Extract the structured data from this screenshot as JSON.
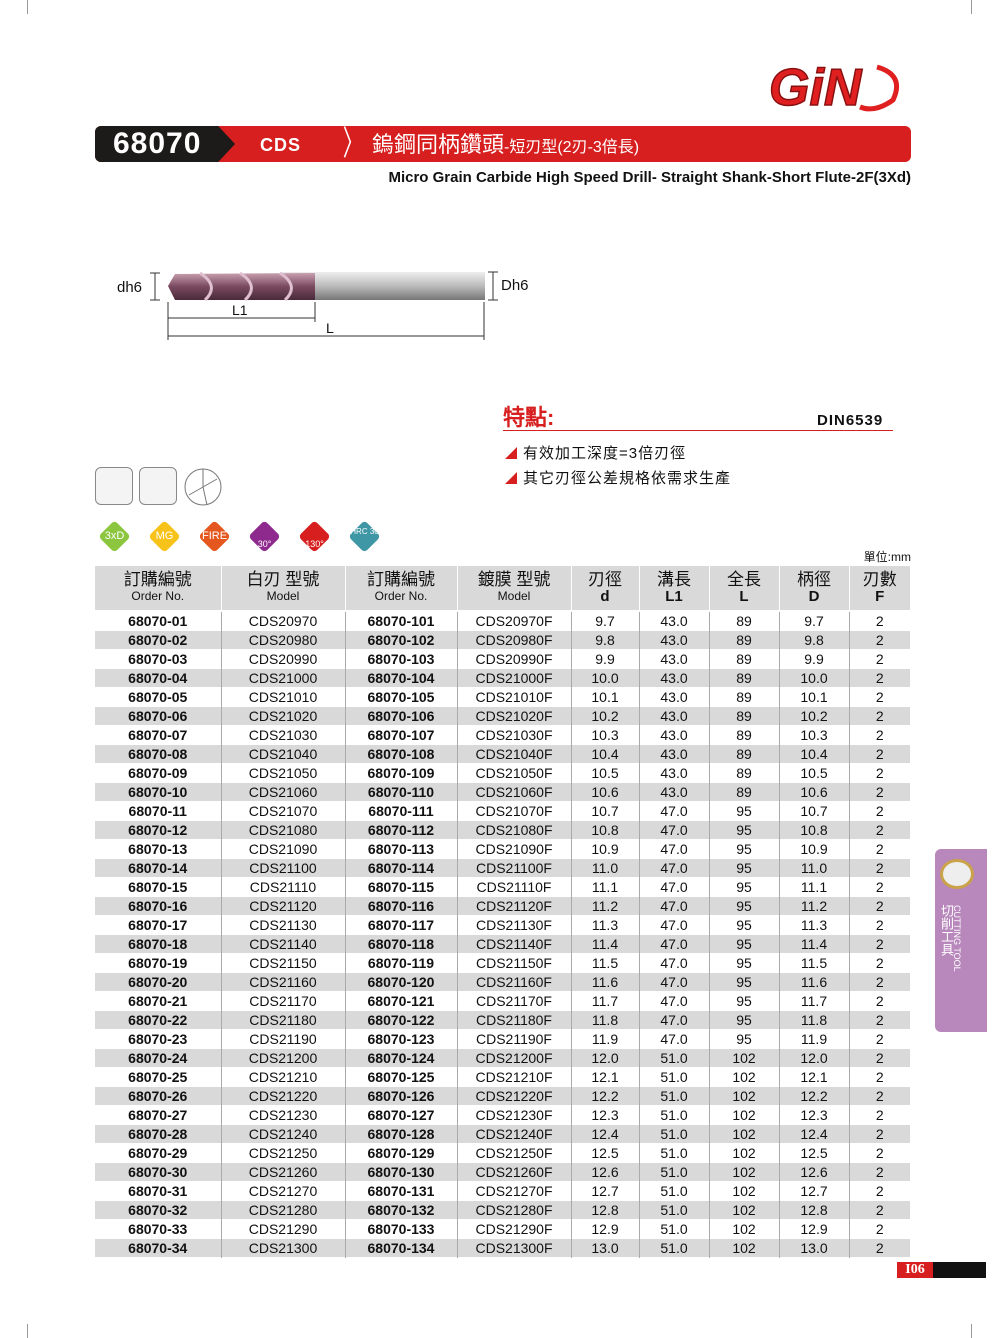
{
  "brand": {
    "logo_text": "GiN"
  },
  "header": {
    "code": "68070",
    "series": "CDS",
    "title_zh": "鎢鋼同柄鑽頭",
    "title_zh_sub": "-短刃型(2刃-3倍長)",
    "title_en": "Micro Grain Carbide High Speed Drill- Straight Shank-Short Flute-2F(3Xd)"
  },
  "diagram": {
    "dh6": "dh6",
    "Dh6": "Dh6",
    "L1": "L1",
    "L": "L"
  },
  "features": {
    "title": "特點:",
    "standard": "DIN6539",
    "items": [
      "有效加工深度=3倍刃徑",
      "其它刃徑公差規格依需求生產"
    ]
  },
  "badges": [
    {
      "label": "3xD",
      "color": "#8cc63f"
    },
    {
      "label": "MG",
      "color": "#f7c21a"
    },
    {
      "label": "FIRE",
      "color": "#e4571e"
    },
    {
      "label": "30°",
      "color": "#8e2a8e"
    },
    {
      "label": "130°",
      "color": "#d71f1f"
    },
    {
      "label": "HRC 30",
      "color": "#3f96a4"
    }
  ],
  "unit": "單位:mm",
  "table": {
    "headers": [
      {
        "zh": "訂購編號",
        "en": "Order No."
      },
      {
        "zh": "白刃 型號",
        "en": "Model"
      },
      {
        "zh": "訂購編號",
        "en": "Order No."
      },
      {
        "zh": "鍍膜 型號",
        "en": "Model"
      },
      {
        "zh": "刃徑",
        "en": "d"
      },
      {
        "zh": "溝長",
        "en": "L1"
      },
      {
        "zh": "全長",
        "en": "L"
      },
      {
        "zh": "柄徑",
        "en": "D"
      },
      {
        "zh": "刃數",
        "en": "F"
      }
    ],
    "rows": [
      [
        "68070-01",
        "CDS20970",
        "68070-101",
        "CDS20970F",
        "9.7",
        "43.0",
        "89",
        "9.7",
        "2"
      ],
      [
        "68070-02",
        "CDS20980",
        "68070-102",
        "CDS20980F",
        "9.8",
        "43.0",
        "89",
        "9.8",
        "2"
      ],
      [
        "68070-03",
        "CDS20990",
        "68070-103",
        "CDS20990F",
        "9.9",
        "43.0",
        "89",
        "9.9",
        "2"
      ],
      [
        "68070-04",
        "CDS21000",
        "68070-104",
        "CDS21000F",
        "10.0",
        "43.0",
        "89",
        "10.0",
        "2"
      ],
      [
        "68070-05",
        "CDS21010",
        "68070-105",
        "CDS21010F",
        "10.1",
        "43.0",
        "89",
        "10.1",
        "2"
      ],
      [
        "68070-06",
        "CDS21020",
        "68070-106",
        "CDS21020F",
        "10.2",
        "43.0",
        "89",
        "10.2",
        "2"
      ],
      [
        "68070-07",
        "CDS21030",
        "68070-107",
        "CDS21030F",
        "10.3",
        "43.0",
        "89",
        "10.3",
        "2"
      ],
      [
        "68070-08",
        "CDS21040",
        "68070-108",
        "CDS21040F",
        "10.4",
        "43.0",
        "89",
        "10.4",
        "2"
      ],
      [
        "68070-09",
        "CDS21050",
        "68070-109",
        "CDS21050F",
        "10.5",
        "43.0",
        "89",
        "10.5",
        "2"
      ],
      [
        "68070-10",
        "CDS21060",
        "68070-110",
        "CDS21060F",
        "10.6",
        "43.0",
        "89",
        "10.6",
        "2"
      ],
      [
        "68070-11",
        "CDS21070",
        "68070-111",
        "CDS21070F",
        "10.7",
        "47.0",
        "95",
        "10.7",
        "2"
      ],
      [
        "68070-12",
        "CDS21080",
        "68070-112",
        "CDS21080F",
        "10.8",
        "47.0",
        "95",
        "10.8",
        "2"
      ],
      [
        "68070-13",
        "CDS21090",
        "68070-113",
        "CDS21090F",
        "10.9",
        "47.0",
        "95",
        "10.9",
        "2"
      ],
      [
        "68070-14",
        "CDS21100",
        "68070-114",
        "CDS21100F",
        "11.0",
        "47.0",
        "95",
        "11.0",
        "2"
      ],
      [
        "68070-15",
        "CDS21110",
        "68070-115",
        "CDS21110F",
        "11.1",
        "47.0",
        "95",
        "11.1",
        "2"
      ],
      [
        "68070-16",
        "CDS21120",
        "68070-116",
        "CDS21120F",
        "11.2",
        "47.0",
        "95",
        "11.2",
        "2"
      ],
      [
        "68070-17",
        "CDS21130",
        "68070-117",
        "CDS21130F",
        "11.3",
        "47.0",
        "95",
        "11.3",
        "2"
      ],
      [
        "68070-18",
        "CDS21140",
        "68070-118",
        "CDS21140F",
        "11.4",
        "47.0",
        "95",
        "11.4",
        "2"
      ],
      [
        "68070-19",
        "CDS21150",
        "68070-119",
        "CDS21150F",
        "11.5",
        "47.0",
        "95",
        "11.5",
        "2"
      ],
      [
        "68070-20",
        "CDS21160",
        "68070-120",
        "CDS21160F",
        "11.6",
        "47.0",
        "95",
        "11.6",
        "2"
      ],
      [
        "68070-21",
        "CDS21170",
        "68070-121",
        "CDS21170F",
        "11.7",
        "47.0",
        "95",
        "11.7",
        "2"
      ],
      [
        "68070-22",
        "CDS21180",
        "68070-122",
        "CDS21180F",
        "11.8",
        "47.0",
        "95",
        "11.8",
        "2"
      ],
      [
        "68070-23",
        "CDS21190",
        "68070-123",
        "CDS21190F",
        "11.9",
        "47.0",
        "95",
        "11.9",
        "2"
      ],
      [
        "68070-24",
        "CDS21200",
        "68070-124",
        "CDS21200F",
        "12.0",
        "51.0",
        "102",
        "12.0",
        "2"
      ],
      [
        "68070-25",
        "CDS21210",
        "68070-125",
        "CDS21210F",
        "12.1",
        "51.0",
        "102",
        "12.1",
        "2"
      ],
      [
        "68070-26",
        "CDS21220",
        "68070-126",
        "CDS21220F",
        "12.2",
        "51.0",
        "102",
        "12.2",
        "2"
      ],
      [
        "68070-27",
        "CDS21230",
        "68070-127",
        "CDS21230F",
        "12.3",
        "51.0",
        "102",
        "12.3",
        "2"
      ],
      [
        "68070-28",
        "CDS21240",
        "68070-128",
        "CDS21240F",
        "12.4",
        "51.0",
        "102",
        "12.4",
        "2"
      ],
      [
        "68070-29",
        "CDS21250",
        "68070-129",
        "CDS21250F",
        "12.5",
        "51.0",
        "102",
        "12.5",
        "2"
      ],
      [
        "68070-30",
        "CDS21260",
        "68070-130",
        "CDS21260F",
        "12.6",
        "51.0",
        "102",
        "12.6",
        "2"
      ],
      [
        "68070-31",
        "CDS21270",
        "68070-131",
        "CDS21270F",
        "12.7",
        "51.0",
        "102",
        "12.7",
        "2"
      ],
      [
        "68070-32",
        "CDS21280",
        "68070-132",
        "CDS21280F",
        "12.8",
        "51.0",
        "102",
        "12.8",
        "2"
      ],
      [
        "68070-33",
        "CDS21290",
        "68070-133",
        "CDS21290F",
        "12.9",
        "51.0",
        "102",
        "12.9",
        "2"
      ],
      [
        "68070-34",
        "CDS21300",
        "68070-134",
        "CDS21300F",
        "13.0",
        "51.0",
        "102",
        "13.0",
        "2"
      ]
    ]
  },
  "sidetab": {
    "zh": "切削工具",
    "en": "CUTTING TOOL"
  },
  "page_number": "I06"
}
